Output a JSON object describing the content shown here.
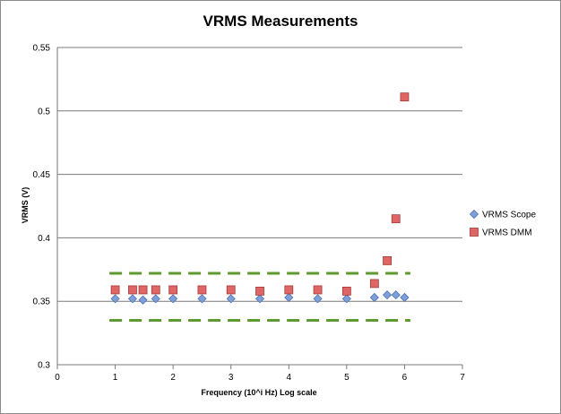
{
  "chart_data": {
    "type": "scatter",
    "title": "VRMS Measurements",
    "xlabel": "Frequency (10^i Hz) Log scale",
    "ylabel": "VRMS (V)",
    "xlim": [
      0,
      7
    ],
    "ylim": [
      0.3,
      0.55
    ],
    "xticks": [
      "0",
      "1",
      "2",
      "3",
      "4",
      "5",
      "6",
      "7"
    ],
    "yticks": [
      "0.3",
      "0.35",
      "0.4",
      "0.45",
      "0.5",
      "0.55"
    ],
    "grid": "horizontal",
    "legend_position": "right",
    "series": [
      {
        "name": "VRMS Scope",
        "marker": "diamond",
        "color": "#7f9fd9",
        "points": [
          [
            1,
            0.352
          ],
          [
            1.3,
            0.352
          ],
          [
            1.48,
            0.351
          ],
          [
            1.7,
            0.352
          ],
          [
            2,
            0.352
          ],
          [
            2.5,
            0.352
          ],
          [
            3,
            0.352
          ],
          [
            3.5,
            0.352
          ],
          [
            4,
            0.353
          ],
          [
            4.5,
            0.352
          ],
          [
            5,
            0.352
          ],
          [
            5.48,
            0.353
          ],
          [
            5.7,
            0.355
          ],
          [
            5.85,
            0.355
          ],
          [
            6,
            0.353
          ]
        ]
      },
      {
        "name": "VRMS DMM",
        "marker": "square",
        "color": "#e06666",
        "points": [
          [
            1,
            0.359
          ],
          [
            1.3,
            0.359
          ],
          [
            1.48,
            0.359
          ],
          [
            1.7,
            0.359
          ],
          [
            2,
            0.359
          ],
          [
            2.5,
            0.359
          ],
          [
            3,
            0.359
          ],
          [
            3.5,
            0.358
          ],
          [
            4,
            0.359
          ],
          [
            4.5,
            0.359
          ],
          [
            5,
            0.358
          ],
          [
            5.48,
            0.364
          ],
          [
            5.7,
            0.382
          ],
          [
            5.85,
            0.415
          ],
          [
            6,
            0.511
          ]
        ]
      }
    ],
    "reference_lines": [
      {
        "y": 0.372,
        "x_start": 0.9,
        "x_end": 6.1,
        "style": "dashed",
        "color": "#5e9a2e"
      },
      {
        "y": 0.335,
        "x_start": 0.9,
        "x_end": 6.1,
        "style": "dashed",
        "color": "#5e9a2e"
      }
    ]
  }
}
